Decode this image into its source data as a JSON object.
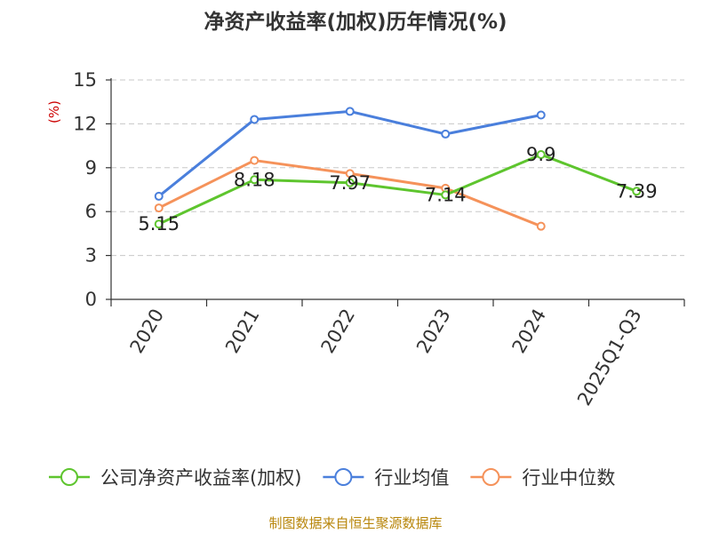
{
  "chart_data": {
    "type": "line",
    "title": "净资产收益率(加权)历年情况(%)",
    "y_unit": "(%)",
    "categories": [
      "2020",
      "2021",
      "2022",
      "2023",
      "2024",
      "2025Q1-Q3"
    ],
    "y_ticks": [
      "0",
      "3",
      "6",
      "9",
      "12",
      "15"
    ],
    "ylim": [
      0,
      15
    ],
    "grid": true,
    "legend_position": "bottom",
    "series": [
      {
        "name": "公司净资产收益率(加权)",
        "color": "#5ec52e",
        "values": [
          5.15,
          8.18,
          7.97,
          7.14,
          9.9,
          7.39
        ],
        "labels": [
          "5.15",
          "8.18",
          "7.97",
          "7.14",
          "9.9",
          "7.39"
        ]
      },
      {
        "name": "行业均值",
        "color": "#4a7fdc",
        "values": [
          7.05,
          12.3,
          12.85,
          11.3,
          12.6,
          null
        ]
      },
      {
        "name": "行业中位数",
        "color": "#f5925a",
        "values": [
          6.25,
          9.5,
          8.6,
          7.6,
          5.0,
          null
        ]
      }
    ]
  },
  "source": "制图数据来自恒生聚源数据库"
}
